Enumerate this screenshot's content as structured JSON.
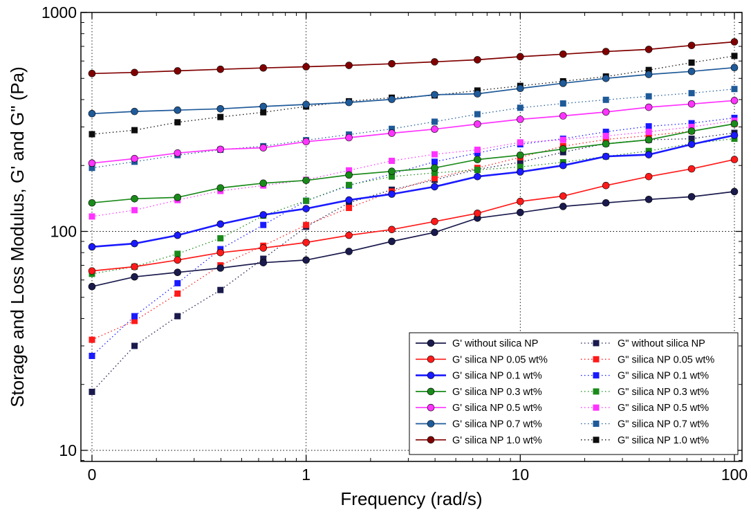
{
  "chart_data": {
    "type": "line",
    "xscale": "log",
    "yscale": "log",
    "xlabel": "Frequency (rad/s)",
    "ylabel": "Storage and Loss Modulus, G' and G\" (Pa)",
    "xlim": [
      0.1,
      100
    ],
    "ylim": [
      9,
      1000
    ],
    "x_ticks": [
      {
        "value": 0.1,
        "label": "0"
      },
      {
        "value": 1,
        "label": "1"
      },
      {
        "value": 10,
        "label": "10"
      },
      {
        "value": 100,
        "label": "100"
      }
    ],
    "y_ticks": [
      {
        "value": 10,
        "label": "10"
      },
      {
        "value": 100,
        "label": "100"
      },
      {
        "value": 1000,
        "label": "1000"
      }
    ],
    "grid": true,
    "legend_position": "bottom-right",
    "x": [
      0.1,
      0.158,
      0.251,
      0.398,
      0.631,
      1.0,
      1.585,
      2.512,
      3.981,
      6.31,
      10.0,
      15.85,
      25.12,
      39.81,
      63.1,
      100.0
    ],
    "series": [
      {
        "name": "G' without silica NP",
        "color": "#1a1a4d",
        "marker": "circle",
        "line": "solid",
        "values": [
          56,
          62,
          65,
          68,
          72,
          74,
          81,
          90,
          99,
          115,
          122,
          130,
          135,
          140,
          144,
          152
        ]
      },
      {
        "name": "G' silica NP 0.05 wt%",
        "color": "#ff1a1a",
        "marker": "circle",
        "line": "solid",
        "values": [
          66,
          69,
          74,
          80,
          84,
          89,
          96,
          102,
          111,
          121,
          137,
          145,
          162,
          178,
          193,
          213
        ]
      },
      {
        "name": "G' silica NP 0.1 wt%",
        "color": "#1a1aff",
        "marker": "circle",
        "line": "solid",
        "thick": true,
        "values": [
          85,
          88,
          96,
          108,
          119,
          127,
          139,
          148,
          160,
          178,
          187,
          200,
          220,
          224,
          250,
          275
        ]
      },
      {
        "name": "G' silica NP 0.3 wt%",
        "color": "#1a8a1a",
        "marker": "circle",
        "line": "solid",
        "values": [
          135,
          141,
          143,
          158,
          166,
          171,
          181,
          188,
          195,
          213,
          223,
          238,
          251,
          262,
          287,
          310
        ]
      },
      {
        "name": "G' silica NP 0.5 wt%",
        "color": "#ff33ff",
        "marker": "circle",
        "line": "solid",
        "values": [
          205,
          215,
          228,
          237,
          241,
          257,
          268,
          281,
          293,
          309,
          325,
          337,
          351,
          369,
          382,
          396
        ]
      },
      {
        "name": "G' silica NP 0.7 wt%",
        "color": "#1f5a99",
        "marker": "circle",
        "line": "solid",
        "values": [
          345,
          353,
          358,
          363,
          372,
          380,
          388,
          401,
          421,
          425,
          450,
          475,
          500,
          521,
          538,
          560
        ]
      },
      {
        "name": "G' silica NP 1.0 wt%",
        "color": "#800000",
        "marker": "circle",
        "line": "solid",
        "values": [
          526,
          532,
          541,
          550,
          558,
          565,
          573,
          583,
          595,
          608,
          628,
          645,
          663,
          678,
          707,
          734
        ]
      },
      {
        "name": "G\" without silica NP",
        "color": "#1a1a4d",
        "marker": "square",
        "line": "dotted",
        "values": [
          18.5,
          30,
          41,
          54,
          75,
          105,
          135,
          155,
          172,
          192,
          207,
          230,
          252,
          262,
          265,
          282
        ]
      },
      {
        "name": "G\" silica NP 0.05 wt%",
        "color": "#ff1a1a",
        "marker": "square",
        "line": "dotted",
        "values": [
          32,
          39,
          52,
          70,
          86,
          107,
          128,
          152,
          175,
          195,
          218,
          245,
          263,
          274,
          287,
          310
        ]
      },
      {
        "name": "G\" silica NP 0.1 wt%",
        "color": "#1a1aff",
        "marker": "square",
        "line": "dotted",
        "values": [
          27,
          41,
          58,
          83,
          107,
          138,
          162,
          183,
          208,
          228,
          250,
          265,
          285,
          302,
          312,
          330
        ]
      },
      {
        "name": "G\" silica NP 0.3 wt%",
        "color": "#1a8a1a",
        "marker": "square",
        "line": "dotted",
        "values": [
          64,
          69,
          79,
          93,
          118,
          138,
          163,
          178,
          185,
          191,
          197,
          207,
          220,
          233,
          252,
          265
        ]
      },
      {
        "name": "G\" silica NP 0.5 wt%",
        "color": "#ff33ff",
        "marker": "square",
        "line": "dotted",
        "values": [
          117,
          125,
          139,
          153,
          162,
          172,
          190,
          210,
          225,
          236,
          255,
          262,
          273,
          285,
          300,
          320
        ]
      },
      {
        "name": "G\" silica NP 0.7 wt%",
        "color": "#1f5a99",
        "marker": "square",
        "line": "dotted",
        "values": [
          195,
          208,
          223,
          236,
          245,
          261,
          277,
          294,
          317,
          343,
          367,
          384,
          399,
          414,
          428,
          447
        ]
      },
      {
        "name": "G\" silica NP 1.0 wt%",
        "color": "#0d0d0d",
        "marker": "square",
        "line": "dotted",
        "values": [
          278,
          290,
          315,
          333,
          350,
          372,
          393,
          408,
          418,
          440,
          462,
          485,
          510,
          546,
          590,
          633
        ]
      }
    ]
  }
}
